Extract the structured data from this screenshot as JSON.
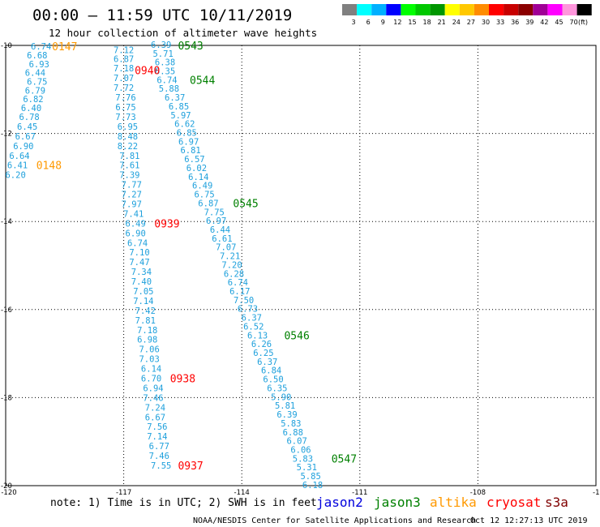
{
  "header": {
    "title": "00:00 – 11:59 UTC 10/11/2019",
    "subtitle": "12 hour collection of altimeter wave heights"
  },
  "legend": {
    "unit": "(ft)",
    "items": [
      {
        "label": "3",
        "color": "#808080"
      },
      {
        "label": "6",
        "color": "#00ffff"
      },
      {
        "label": "9",
        "color": "#00b0ff"
      },
      {
        "label": "12",
        "color": "#0000ff"
      },
      {
        "label": "15",
        "color": "#00ff00"
      },
      {
        "label": "18",
        "color": "#00c800"
      },
      {
        "label": "21",
        "color": "#009600"
      },
      {
        "label": "24",
        "color": "#ffff00"
      },
      {
        "label": "27",
        "color": "#ffc800"
      },
      {
        "label": "30",
        "color": "#ff8c00"
      },
      {
        "label": "33",
        "color": "#ff0000"
      },
      {
        "label": "36",
        "color": "#c80000"
      },
      {
        "label": "39",
        "color": "#8b0000"
      },
      {
        "label": "42",
        "color": "#a00096"
      },
      {
        "label": "45",
        "color": "#ff00ff"
      },
      {
        "label": "70",
        "color": "#ff96dc"
      },
      {
        "label": "",
        "color": "#000000"
      }
    ]
  },
  "map": {
    "x_ticks": [
      {
        "value": -120,
        "label": "-120"
      },
      {
        "value": -117,
        "label": "-117"
      },
      {
        "value": -114,
        "label": "-114"
      },
      {
        "value": -111,
        "label": "-111"
      },
      {
        "value": -108,
        "label": "-108"
      },
      {
        "value": -105,
        "label": "-105"
      }
    ],
    "y_ticks": [
      {
        "value": -10,
        "label": "-10"
      },
      {
        "value": -12,
        "label": "-12"
      },
      {
        "value": -14,
        "label": "-14"
      },
      {
        "value": -16,
        "label": "-16"
      },
      {
        "value": -18,
        "label": "-18"
      },
      {
        "value": -20,
        "label": "-20"
      }
    ],
    "lon_range": [
      -120,
      -105
    ],
    "lat_range": [
      -20,
      -10
    ]
  },
  "chart_data": {
    "type": "scatter",
    "value_color": "#1ea0dc",
    "tracks": [
      {
        "satellite": "altika",
        "values": [
          {
            "lon": -119.1,
            "lat": -10.02,
            "v": "6.74"
          },
          {
            "lon": -119.2,
            "lat": -10.22,
            "v": "6.68"
          },
          {
            "lon": -119.15,
            "lat": -10.42,
            "v": "6.93"
          },
          {
            "lon": -119.25,
            "lat": -10.62,
            "v": "6.44"
          },
          {
            "lon": -119.2,
            "lat": -10.82,
            "v": "6.75"
          },
          {
            "lon": -119.25,
            "lat": -11.02,
            "v": "6.79"
          },
          {
            "lon": -119.3,
            "lat": -11.22,
            "v": "6.82"
          },
          {
            "lon": -119.35,
            "lat": -11.42,
            "v": "6.40"
          },
          {
            "lon": -119.4,
            "lat": -11.62,
            "v": "6.78"
          },
          {
            "lon": -119.45,
            "lat": -11.84,
            "v": "6.45"
          },
          {
            "lon": -119.5,
            "lat": -12.06,
            "v": "6.67"
          },
          {
            "lon": -119.55,
            "lat": -12.28,
            "v": "6.90"
          },
          {
            "lon": -119.65,
            "lat": -12.5,
            "v": "6.64"
          },
          {
            "lon": -119.7,
            "lat": -12.72,
            "v": "6.41"
          },
          {
            "lon": -119.75,
            "lat": -12.94,
            "v": "6.20"
          }
        ],
        "passes": [
          {
            "lon": -118.5,
            "lat": -10.02,
            "time": "0147",
            "color": "#ff9900"
          },
          {
            "lon": -118.9,
            "lat": -12.72,
            "time": "0148",
            "color": "#ff9900"
          }
        ]
      },
      {
        "satellite": "cryosat",
        "values": [
          {
            "lon": -117.0,
            "lat": -10.1,
            "v": "7.12"
          },
          {
            "lon": -117.0,
            "lat": -10.3,
            "v": "6.87"
          },
          {
            "lon": -117.0,
            "lat": -10.52,
            "v": "7.18"
          },
          {
            "lon": -117.0,
            "lat": -10.74,
            "v": "7.07"
          },
          {
            "lon": -117.0,
            "lat": -10.96,
            "v": "7.72"
          },
          {
            "lon": -116.95,
            "lat": -11.18,
            "v": "7.76"
          },
          {
            "lon": -116.95,
            "lat": -11.4,
            "v": "6.75"
          },
          {
            "lon": -116.95,
            "lat": -11.62,
            "v": "7.73"
          },
          {
            "lon": -116.9,
            "lat": -11.84,
            "v": "6.95"
          },
          {
            "lon": -116.9,
            "lat": -12.06,
            "v": "8.48"
          },
          {
            "lon": -116.9,
            "lat": -12.28,
            "v": "8.22"
          },
          {
            "lon": -116.85,
            "lat": -12.5,
            "v": "7.81"
          },
          {
            "lon": -116.85,
            "lat": -12.72,
            "v": "7.61"
          },
          {
            "lon": -116.85,
            "lat": -12.94,
            "v": "7.39"
          },
          {
            "lon": -116.8,
            "lat": -13.16,
            "v": "7.77"
          },
          {
            "lon": -116.8,
            "lat": -13.38,
            "v": "7.27"
          },
          {
            "lon": -116.8,
            "lat": -13.6,
            "v": "7.97"
          },
          {
            "lon": -116.75,
            "lat": -13.82,
            "v": "7.41"
          },
          {
            "lon": -116.7,
            "lat": -14.04,
            "v": "6.49"
          },
          {
            "lon": -116.7,
            "lat": -14.26,
            "v": "6.90"
          },
          {
            "lon": -116.65,
            "lat": -14.48,
            "v": "6.74"
          },
          {
            "lon": -116.6,
            "lat": -14.7,
            "v": "7.10"
          },
          {
            "lon": -116.6,
            "lat": -14.92,
            "v": "7.47"
          },
          {
            "lon": -116.55,
            "lat": -15.14,
            "v": "7.34"
          },
          {
            "lon": -116.55,
            "lat": -15.36,
            "v": "7.40"
          },
          {
            "lon": -116.5,
            "lat": -15.58,
            "v": "7.05"
          },
          {
            "lon": -116.5,
            "lat": -15.8,
            "v": "7.14"
          },
          {
            "lon": -116.45,
            "lat": -16.02,
            "v": "7.42"
          },
          {
            "lon": -116.45,
            "lat": -16.24,
            "v": "7.81"
          },
          {
            "lon": -116.4,
            "lat": -16.46,
            "v": "7.18"
          },
          {
            "lon": -116.4,
            "lat": -16.68,
            "v": "6.98"
          },
          {
            "lon": -116.35,
            "lat": -16.9,
            "v": "7.06"
          },
          {
            "lon": -116.35,
            "lat": -17.12,
            "v": "7.03"
          },
          {
            "lon": -116.3,
            "lat": -17.34,
            "v": "6.14"
          },
          {
            "lon": -116.3,
            "lat": -17.56,
            "v": "6.70"
          },
          {
            "lon": -116.25,
            "lat": -17.78,
            "v": "6.94"
          },
          {
            "lon": -116.25,
            "lat": -18.0,
            "v": "7.46"
          },
          {
            "lon": -116.2,
            "lat": -18.22,
            "v": "7.24"
          },
          {
            "lon": -116.2,
            "lat": -18.44,
            "v": "6.67"
          },
          {
            "lon": -116.15,
            "lat": -18.66,
            "v": "7.56"
          },
          {
            "lon": -116.15,
            "lat": -18.88,
            "v": "7.14"
          },
          {
            "lon": -116.1,
            "lat": -19.1,
            "v": "6.77"
          },
          {
            "lon": -116.1,
            "lat": -19.32,
            "v": "7.46"
          },
          {
            "lon": -116.05,
            "lat": -19.54,
            "v": "7.55"
          }
        ],
        "passes": [
          {
            "lon": -116.4,
            "lat": -10.56,
            "time": "0940",
            "color": "#ff0000"
          },
          {
            "lon": -115.9,
            "lat": -14.04,
            "time": "0939",
            "color": "#ff0000"
          },
          {
            "lon": -115.5,
            "lat": -17.56,
            "time": "0938",
            "color": "#ff0000"
          },
          {
            "lon": -115.3,
            "lat": -19.54,
            "time": "0937",
            "color": "#ff0000"
          }
        ]
      },
      {
        "satellite": "jason3",
        "values": [
          {
            "lon": -116.05,
            "lat": -9.98,
            "v": "6.39"
          },
          {
            "lon": -116.0,
            "lat": -10.18,
            "v": "5.71"
          },
          {
            "lon": -115.95,
            "lat": -10.38,
            "v": "6.38"
          },
          {
            "lon": -115.95,
            "lat": -10.58,
            "v": "6.35"
          },
          {
            "lon": -115.9,
            "lat": -10.78,
            "v": "6.74"
          },
          {
            "lon": -115.85,
            "lat": -10.98,
            "v": "5.88"
          },
          {
            "lon": -115.7,
            "lat": -11.18,
            "v": "6.37"
          },
          {
            "lon": -115.6,
            "lat": -11.38,
            "v": "6.85"
          },
          {
            "lon": -115.55,
            "lat": -11.58,
            "v": "5.97"
          },
          {
            "lon": -115.45,
            "lat": -11.78,
            "v": "6.62"
          },
          {
            "lon": -115.4,
            "lat": -11.98,
            "v": "6.85"
          },
          {
            "lon": -115.35,
            "lat": -12.18,
            "v": "6.97"
          },
          {
            "lon": -115.3,
            "lat": -12.38,
            "v": "6.81"
          },
          {
            "lon": -115.2,
            "lat": -12.58,
            "v": "6.57"
          },
          {
            "lon": -115.15,
            "lat": -12.78,
            "v": "6.02"
          },
          {
            "lon": -115.1,
            "lat": -12.98,
            "v": "6.14"
          },
          {
            "lon": -115.0,
            "lat": -13.18,
            "v": "6.49"
          },
          {
            "lon": -114.95,
            "lat": -13.38,
            "v": "6.75"
          },
          {
            "lon": -114.85,
            "lat": -13.58,
            "v": "6.87"
          },
          {
            "lon": -114.7,
            "lat": -13.78,
            "v": "7.75"
          },
          {
            "lon": -114.65,
            "lat": -13.98,
            "v": "6.97"
          },
          {
            "lon": -114.55,
            "lat": -14.18,
            "v": "6.44"
          },
          {
            "lon": -114.5,
            "lat": -14.38,
            "v": "6.61"
          },
          {
            "lon": -114.4,
            "lat": -14.58,
            "v": "7.07"
          },
          {
            "lon": -114.3,
            "lat": -14.78,
            "v": "7.21"
          },
          {
            "lon": -114.25,
            "lat": -14.98,
            "v": "7.20"
          },
          {
            "lon": -114.2,
            "lat": -15.18,
            "v": "6.28"
          },
          {
            "lon": -114.1,
            "lat": -15.38,
            "v": "6.74"
          },
          {
            "lon": -114.05,
            "lat": -15.58,
            "v": "6.17"
          },
          {
            "lon": -113.95,
            "lat": -15.78,
            "v": "7.50"
          },
          {
            "lon": -113.85,
            "lat": -15.98,
            "v": "6.73"
          },
          {
            "lon": -113.75,
            "lat": -16.18,
            "v": "6.37"
          },
          {
            "lon": -113.7,
            "lat": -16.38,
            "v": "6.52"
          },
          {
            "lon": -113.6,
            "lat": -16.58,
            "v": "6.13"
          },
          {
            "lon": -113.5,
            "lat": -16.78,
            "v": "6.26"
          },
          {
            "lon": -113.45,
            "lat": -16.98,
            "v": "6.25"
          },
          {
            "lon": -113.35,
            "lat": -17.18,
            "v": "6.37"
          },
          {
            "lon": -113.25,
            "lat": -17.38,
            "v": "6.84"
          },
          {
            "lon": -113.2,
            "lat": -17.58,
            "v": "6.50"
          },
          {
            "lon": -113.1,
            "lat": -17.78,
            "v": "6.35"
          },
          {
            "lon": -113.0,
            "lat": -17.98,
            "v": "5.90"
          },
          {
            "lon": -112.9,
            "lat": -18.18,
            "v": "5.81"
          },
          {
            "lon": -112.85,
            "lat": -18.38,
            "v": "6.39"
          },
          {
            "lon": -112.75,
            "lat": -18.58,
            "v": "5.83"
          },
          {
            "lon": -112.7,
            "lat": -18.78,
            "v": "6.88"
          },
          {
            "lon": -112.6,
            "lat": -18.98,
            "v": "6.07"
          },
          {
            "lon": -112.5,
            "lat": -19.18,
            "v": "6.06"
          },
          {
            "lon": -112.45,
            "lat": -19.38,
            "v": "5.83"
          },
          {
            "lon": -112.35,
            "lat": -19.58,
            "v": "5.31"
          },
          {
            "lon": -112.25,
            "lat": -19.78,
            "v": "5.85"
          },
          {
            "lon": -112.2,
            "lat": -19.98,
            "v": "6.18"
          }
        ],
        "passes": [
          {
            "lon": -115.3,
            "lat": -10.0,
            "time": "0543",
            "color": "#008000"
          },
          {
            "lon": -115.0,
            "lat": -10.78,
            "time": "0544",
            "color": "#008000"
          },
          {
            "lon": -113.9,
            "lat": -13.58,
            "time": "0545",
            "color": "#008000"
          },
          {
            "lon": -112.6,
            "lat": -16.58,
            "time": "0546",
            "color": "#008000"
          },
          {
            "lon": -111.4,
            "lat": -19.38,
            "time": "0547",
            "color": "#008000"
          }
        ]
      }
    ]
  },
  "footer": {
    "note": "note:  1) Time is in UTC; 2) SWH is in feet",
    "satellites": [
      {
        "name": "jason2",
        "color": "#0000dd"
      },
      {
        "name": "jason3",
        "color": "#008000"
      },
      {
        "name": "altika",
        "color": "#ff9900"
      },
      {
        "name": "cryosat",
        "color": "#ff0000"
      },
      {
        "name": "s3a",
        "color": "#800000"
      }
    ],
    "credit": "NOAA/NESDIS Center for Satellite Applications and Research",
    "timestamp": "Oct 12 12:27:13 UTC 2019"
  }
}
